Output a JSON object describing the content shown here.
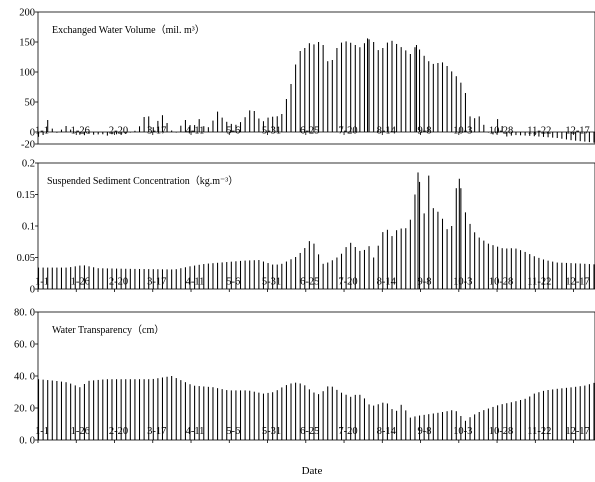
{
  "figure": {
    "xlabel": "Date"
  },
  "chart_data": [
    {
      "type": "bar",
      "title": "Exchanged Water Volume（mil. m³）",
      "xlabel": "",
      "ylabel": "",
      "ylim": [
        -20,
        200
      ],
      "yticks": [
        "200",
        "150",
        "100",
        "50",
        "0",
        "-20"
      ],
      "xticks": [
        "1-1",
        "1-26",
        "2-20",
        "3-17",
        "4-11",
        "5-6",
        "5-31",
        "6-25",
        "7-20",
        "8-14",
        "9-8",
        "10-3",
        "10-28",
        "11-22",
        "12-17"
      ],
      "x_start_day": 1,
      "x_end_day": 365,
      "x_tick_interval_days": 25,
      "bar_interval_days": 3,
      "profile": [
        [
          1,
          -8
        ],
        [
          4,
          -5
        ],
        [
          7,
          20
        ],
        [
          9,
          10
        ],
        [
          12,
          -3
        ],
        [
          16,
          4
        ],
        [
          19,
          10
        ],
        [
          22,
          4
        ],
        [
          26,
          -3
        ],
        [
          30,
          -6
        ],
        [
          34,
          -3
        ],
        [
          38,
          -5
        ],
        [
          42,
          -3
        ],
        [
          46,
          -6
        ],
        [
          50,
          -3
        ],
        [
          55,
          -5
        ],
        [
          60,
          -2
        ],
        [
          64,
          2
        ],
        [
          68,
          12
        ],
        [
          70,
          25
        ],
        [
          72,
          28
        ],
        [
          74,
          24
        ],
        [
          76,
          8
        ],
        [
          80,
          22
        ],
        [
          82,
          28
        ],
        [
          84,
          22
        ],
        [
          86,
          8
        ],
        [
          90,
          -3
        ],
        [
          93,
          6
        ],
        [
          95,
          15
        ],
        [
          97,
          20
        ],
        [
          99,
          18
        ],
        [
          101,
          5
        ],
        [
          105,
          18
        ],
        [
          107,
          25
        ],
        [
          110,
          2
        ],
        [
          114,
          14
        ],
        [
          118,
          34
        ],
        [
          120,
          28
        ],
        [
          122,
          20
        ],
        [
          126,
          14
        ],
        [
          130,
          12
        ],
        [
          134,
          18
        ],
        [
          137,
          28
        ],
        [
          140,
          40
        ],
        [
          142,
          35
        ],
        [
          144,
          24
        ],
        [
          148,
          18
        ],
        [
          152,
          26
        ],
        [
          156,
          25
        ],
        [
          160,
          30
        ],
        [
          163,
          55
        ],
        [
          166,
          80
        ],
        [
          168,
          100
        ],
        [
          170,
          125
        ],
        [
          172,
          135
        ],
        [
          175,
          140
        ],
        [
          178,
          148
        ],
        [
          181,
          146
        ],
        [
          184,
          150
        ],
        [
          187,
          145
        ],
        [
          190,
          118
        ],
        [
          193,
          120
        ],
        [
          196,
          140
        ],
        [
          200,
          152
        ],
        [
          204,
          150
        ],
        [
          208,
          145
        ],
        [
          212,
          140
        ],
        [
          216,
          156
        ],
        [
          220,
          150
        ],
        [
          224,
          132
        ],
        [
          228,
          148
        ],
        [
          232,
          152
        ],
        [
          236,
          145
        ],
        [
          240,
          138
        ],
        [
          244,
          130
        ],
        [
          248,
          145
        ],
        [
          252,
          130
        ],
        [
          256,
          118
        ],
        [
          260,
          112
        ],
        [
          264,
          118
        ],
        [
          268,
          110
        ],
        [
          272,
          98
        ],
        [
          276,
          88
        ],
        [
          280,
          65
        ],
        [
          282,
          28
        ],
        [
          285,
          22
        ],
        [
          289,
          26
        ],
        [
          292,
          12
        ],
        [
          295,
          0
        ],
        [
          298,
          -4
        ],
        [
          300,
          18
        ],
        [
          302,
          25
        ],
        [
          304,
          10
        ],
        [
          306,
          -8
        ],
        [
          312,
          -5
        ],
        [
          320,
          -6
        ],
        [
          330,
          -8
        ],
        [
          340,
          -10
        ],
        [
          350,
          -14
        ],
        [
          358,
          -16
        ],
        [
          365,
          -18
        ]
      ],
      "bars": [
        {
          "day": 196,
          "value": 140
        },
        {
          "day": 216,
          "value": 156
        },
        {
          "day": 232,
          "value": 152
        },
        {
          "day": 248,
          "value": 145
        }
      ]
    },
    {
      "type": "bar",
      "title": "Suspended Sediment Concentration（kg.m⁻³）",
      "xlabel": "",
      "ylabel": "",
      "ylim": [
        0,
        0.2
      ],
      "yticks": [
        "0.2",
        "0.15",
        "0.1",
        "0.05",
        "0"
      ],
      "xticks": [
        "1-1",
        "1-26",
        "2-20",
        "3-17",
        "4-11",
        "5-6",
        "5-31",
        "6-25",
        "7-20",
        "8-14",
        "9-8",
        "10-3",
        "10-28",
        "11-22",
        "12-17"
      ],
      "x_start_day": 1,
      "x_end_day": 365,
      "x_tick_interval_days": 25,
      "bar_interval_days": 3,
      "profile": [
        [
          1,
          0.034
        ],
        [
          20,
          0.034
        ],
        [
          30,
          0.038
        ],
        [
          40,
          0.033
        ],
        [
          60,
          0.032
        ],
        [
          90,
          0.031
        ],
        [
          100,
          0.036
        ],
        [
          110,
          0.04
        ],
        [
          120,
          0.042
        ],
        [
          135,
          0.045
        ],
        [
          145,
          0.046
        ],
        [
          150,
          0.042
        ],
        [
          155,
          0.038
        ],
        [
          160,
          0.04
        ],
        [
          165,
          0.046
        ],
        [
          170,
          0.052
        ],
        [
          175,
          0.065
        ],
        [
          178,
          0.076
        ],
        [
          181,
          0.072
        ],
        [
          184,
          0.055
        ],
        [
          187,
          0.04
        ],
        [
          190,
          0.042
        ],
        [
          195,
          0.048
        ],
        [
          200,
          0.058
        ],
        [
          204,
          0.075
        ],
        [
          207,
          0.07
        ],
        [
          210,
          0.06
        ],
        [
          214,
          0.062
        ],
        [
          218,
          0.07
        ],
        [
          220,
          0.05
        ],
        [
          224,
          0.075
        ],
        [
          227,
          0.098
        ],
        [
          230,
          0.092
        ],
        [
          233,
          0.08
        ],
        [
          236,
          0.1
        ],
        [
          240,
          0.092
        ],
        [
          244,
          0.11
        ],
        [
          247,
          0.15
        ],
        [
          249,
          0.185
        ],
        [
          251,
          0.155
        ],
        [
          253,
          0.12
        ],
        [
          256,
          0.18
        ],
        [
          258,
          0.13
        ],
        [
          261,
          0.125
        ],
        [
          264,
          0.118
        ],
        [
          266,
          0.105
        ],
        [
          268,
          0.095
        ],
        [
          271,
          0.1
        ],
        [
          274,
          0.16
        ],
        [
          276,
          0.175
        ],
        [
          278,
          0.145
        ],
        [
          281,
          0.11
        ],
        [
          284,
          0.1
        ],
        [
          287,
          0.085
        ],
        [
          290,
          0.08
        ],
        [
          295,
          0.072
        ],
        [
          300,
          0.068
        ],
        [
          305,
          0.064
        ],
        [
          312,
          0.065
        ],
        [
          318,
          0.06
        ],
        [
          325,
          0.052
        ],
        [
          332,
          0.046
        ],
        [
          340,
          0.042
        ],
        [
          350,
          0.041
        ],
        [
          358,
          0.04
        ],
        [
          365,
          0.039
        ]
      ],
      "bars": [
        {
          "day": 249,
          "value": 0.185
        },
        {
          "day": 256,
          "value": 0.18
        },
        {
          "day": 276,
          "value": 0.175
        }
      ]
    },
    {
      "type": "bar",
      "title": "Water Transparency（cm）",
      "xlabel": "",
      "ylabel": "",
      "ylim": [
        0,
        80
      ],
      "yticks": [
        "80. 0",
        "60. 0",
        "40. 0",
        "20. 0",
        "0. 0"
      ],
      "xticks": [
        "1-1",
        "1-26",
        "2-20",
        "3-17",
        "4-11",
        "5-6",
        "5-31",
        "6-25",
        "7-20",
        "8-14",
        "9-8",
        "10-3",
        "10-28",
        "11-22",
        "12-17"
      ],
      "x_start_day": 1,
      "x_end_day": 365,
      "x_tick_interval_days": 25,
      "bar_interval_days": 3,
      "profile": [
        [
          1,
          38
        ],
        [
          12,
          37
        ],
        [
          20,
          36
        ],
        [
          28,
          33
        ],
        [
          34,
          37
        ],
        [
          45,
          38
        ],
        [
          60,
          38
        ],
        [
          75,
          38
        ],
        [
          88,
          40
        ],
        [
          95,
          37
        ],
        [
          102,
          34
        ],
        [
          115,
          33
        ],
        [
          125,
          31
        ],
        [
          138,
          31
        ],
        [
          148,
          29
        ],
        [
          155,
          30
        ],
        [
          162,
          34
        ],
        [
          168,
          36
        ],
        [
          174,
          35
        ],
        [
          180,
          30
        ],
        [
          186,
          28
        ],
        [
          188,
          33
        ],
        [
          192,
          34
        ],
        [
          198,
          30
        ],
        [
          205,
          27
        ],
        [
          210,
          29
        ],
        [
          214,
          26
        ],
        [
          218,
          21
        ],
        [
          222,
          22
        ],
        [
          228,
          24
        ],
        [
          234,
          17
        ],
        [
          238,
          22
        ],
        [
          240,
          20
        ],
        [
          244,
          14
        ],
        [
          248,
          15
        ],
        [
          255,
          16
        ],
        [
          262,
          17
        ],
        [
          268,
          18
        ],
        [
          273,
          19
        ],
        [
          280,
          12
        ],
        [
          284,
          15
        ],
        [
          290,
          18
        ],
        [
          296,
          20
        ],
        [
          302,
          22
        ],
        [
          312,
          24
        ],
        [
          320,
          26
        ],
        [
          325,
          29
        ],
        [
          332,
          31
        ],
        [
          340,
          32
        ],
        [
          350,
          33
        ],
        [
          358,
          34
        ],
        [
          365,
          36
        ]
      ],
      "bars": [
        {
          "day": 88,
          "value": 40
        },
        {
          "day": 280,
          "value": 12
        }
      ]
    }
  ]
}
